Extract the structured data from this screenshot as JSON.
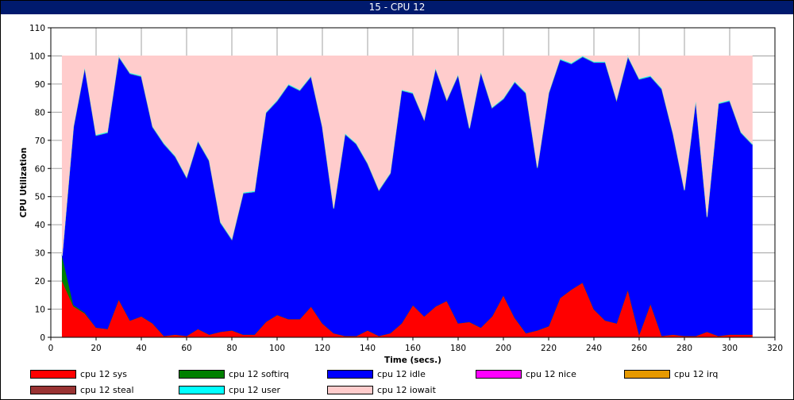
{
  "window": {
    "title": "15 - CPU 12"
  },
  "chart_data": {
    "type": "area",
    "stacked": true,
    "xlabel": "Time (secs.)",
    "ylabel": "CPU Utilization",
    "xlim": [
      0,
      320
    ],
    "ylim": [
      0,
      110
    ],
    "x_ticks": [
      0,
      20,
      40,
      60,
      80,
      100,
      120,
      140,
      160,
      180,
      200,
      220,
      240,
      260,
      280,
      300,
      320
    ],
    "y_ticks": [
      0,
      10,
      20,
      30,
      40,
      50,
      60,
      70,
      80,
      90,
      100,
      110
    ],
    "grid": true,
    "legend_position": "bottom",
    "x": [
      5,
      10,
      15,
      20,
      25,
      30,
      35,
      40,
      45,
      50,
      55,
      60,
      65,
      70,
      75,
      80,
      85,
      90,
      95,
      100,
      105,
      110,
      115,
      120,
      125,
      130,
      135,
      140,
      145,
      150,
      155,
      160,
      165,
      170,
      175,
      180,
      185,
      190,
      195,
      200,
      205,
      210,
      215,
      220,
      225,
      230,
      235,
      240,
      245,
      250,
      255,
      260,
      265,
      270,
      275,
      280,
      285,
      290,
      295,
      300,
      305,
      310
    ],
    "series": [
      {
        "name": "cpu 12 sys",
        "color": "#ff0000",
        "values": [
          20,
          11,
          8.5,
          3.5,
          3,
          13.5,
          6,
          7.5,
          5,
          0.5,
          1,
          0.5,
          3,
          1,
          2,
          2.5,
          1,
          1,
          5.5,
          8,
          6.5,
          6.5,
          11,
          5,
          1.5,
          0.5,
          0.5,
          2.5,
          0.5,
          1.5,
          5,
          11.5,
          7.5,
          11,
          13,
          5,
          5.5,
          3.5,
          7.5,
          15,
          7,
          1.5,
          2.5,
          4,
          14,
          17,
          19.5,
          10,
          6,
          5,
          17,
          1,
          12,
          0.5,
          1,
          0.5,
          0.5,
          2,
          0.5,
          1,
          1,
          1
        ]
      },
      {
        "name": "cpu 12 softirq",
        "color": "#008000",
        "values": [
          9,
          0.5,
          0.3,
          0,
          0,
          0,
          0,
          0,
          0,
          0,
          0,
          0,
          0,
          0,
          0,
          0,
          0,
          0,
          0,
          0,
          0,
          0,
          0,
          0,
          0,
          0,
          0,
          0,
          0,
          0,
          0,
          0,
          0,
          0,
          0,
          0,
          0,
          0,
          0,
          0,
          0,
          0,
          0,
          0,
          0,
          0,
          0,
          0,
          0,
          0,
          0,
          0,
          0,
          0,
          0,
          0,
          0,
          0,
          0,
          0,
          0,
          0
        ]
      },
      {
        "name": "cpu 12 idle",
        "color": "#0000ff",
        "values": [
          0,
          63.2,
          87,
          68.2,
          69.7,
          86.2,
          87.7,
          85.2,
          69.7,
          68.2,
          63.2,
          56.2,
          66.7,
          61.7,
          38.7,
          32.2,
          50.2,
          50.7,
          74.2,
          76,
          83.2,
          81.2,
          81.7,
          69.7,
          44.2,
          71.7,
          68.2,
          59.2,
          51.7,
          56.7,
          82.7,
          75.2,
          69.7,
          84.5,
          71.2,
          88.2,
          68.7,
          90.7,
          74,
          69.7,
          83.7,
          85.2,
          57.7,
          82.7,
          84.7,
          80.2,
          80.2,
          87.7,
          91.7,
          79.2,
          82.7,
          90.7,
          80.7,
          87.7,
          71.2,
          51.7,
          83.7,
          40.7,
          82.5,
          83,
          71.7,
          67.5
        ]
      },
      {
        "name": "cpu 12 nice",
        "color": "#ff00ff",
        "values": [
          0,
          0,
          0,
          0,
          0,
          0,
          0,
          0,
          0,
          0,
          0,
          0,
          0,
          0,
          0,
          0,
          0,
          0,
          0,
          0,
          0,
          0,
          0,
          0,
          0,
          0,
          0,
          0,
          0,
          0,
          0,
          0,
          0,
          0,
          0,
          0,
          0,
          0,
          0,
          0,
          0,
          0,
          0,
          0,
          0,
          0,
          0,
          0,
          0,
          0,
          0,
          0,
          0,
          0,
          0,
          0,
          0,
          0,
          0,
          0,
          0,
          0
        ]
      },
      {
        "name": "cpu 12 irq",
        "color": "#e69900",
        "values": [
          0,
          0,
          0,
          0,
          0,
          0,
          0,
          0,
          0,
          0,
          0,
          0,
          0,
          0,
          0,
          0,
          0,
          0,
          0,
          0,
          0,
          0,
          0,
          0,
          0,
          0,
          0,
          0,
          0,
          0,
          0,
          0,
          0,
          0,
          0,
          0,
          0,
          0,
          0,
          0,
          0,
          0,
          0,
          0,
          0,
          0,
          0,
          0,
          0,
          0,
          0,
          0,
          0,
          0,
          0,
          0,
          0,
          0,
          0,
          0,
          0,
          0
        ]
      },
      {
        "name": "cpu 12 steal",
        "color": "#993333",
        "values": [
          0,
          0,
          0,
          0,
          0,
          0,
          0,
          0,
          0,
          0,
          0,
          0,
          0,
          0,
          0,
          0,
          0,
          0,
          0,
          0,
          0,
          0,
          0,
          0,
          0,
          0,
          0,
          0,
          0,
          0,
          0,
          0,
          0,
          0,
          0,
          0,
          0,
          0,
          0,
          0,
          0,
          0,
          0,
          0,
          0,
          0,
          0,
          0,
          0,
          0,
          0,
          0,
          0,
          0,
          0,
          0,
          0,
          0,
          0,
          0,
          0,
          0
        ]
      },
      {
        "name": "cpu 12 user",
        "color": "#00ffff",
        "values": [
          0,
          0.3,
          0.3,
          0.3,
          0.3,
          0.3,
          0.3,
          0.3,
          0.3,
          0.3,
          0.3,
          0.3,
          0.3,
          0.3,
          0.3,
          0.3,
          0.3,
          0.3,
          0.3,
          0.3,
          0.3,
          0.3,
          0.3,
          0.3,
          0.3,
          0.3,
          0.3,
          0.3,
          0.3,
          0.3,
          0.3,
          0.3,
          0.3,
          0.3,
          0.3,
          0.3,
          0.3,
          0.3,
          0.3,
          0.3,
          0.3,
          0.3,
          0.3,
          0.3,
          0.3,
          0.3,
          0.3,
          0.3,
          0.3,
          0.3,
          0.3,
          0.3,
          0.3,
          0.3,
          0.3,
          0.3,
          0.3,
          0.3,
          0.3,
          0.3,
          0.3,
          0.3
        ]
      },
      {
        "name": "cpu 12 iowait",
        "color": "#ffcccc",
        "values": [
          71,
          25,
          3.9,
          28,
          27,
          0,
          6,
          7,
          25,
          31,
          35.5,
          43,
          30,
          37,
          59,
          65,
          48.5,
          48,
          20,
          15.7,
          10,
          12,
          7,
          25,
          54,
          27.5,
          31,
          38,
          47.5,
          41.5,
          12,
          13,
          22.5,
          4.2,
          15.5,
          6.5,
          25.5,
          5.5,
          18.2,
          15,
          9,
          13,
          39.5,
          13,
          1,
          2.5,
          0,
          2,
          2,
          15.5,
          0,
          8,
          7,
          11.5,
          27.5,
          47.5,
          15.5,
          57,
          16.7,
          15.7,
          27,
          31.2
        ]
      }
    ]
  }
}
